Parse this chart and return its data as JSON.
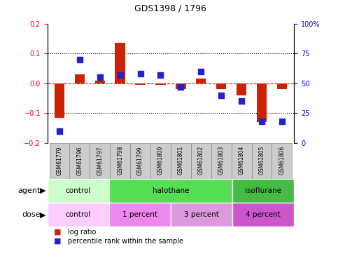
{
  "title": "GDS1398 / 1796",
  "samples": [
    "GSM61779",
    "GSM61796",
    "GSM61797",
    "GSM61798",
    "GSM61799",
    "GSM61800",
    "GSM61801",
    "GSM61802",
    "GSM61803",
    "GSM61804",
    "GSM61805",
    "GSM61806"
  ],
  "log_ratio": [
    -0.115,
    0.03,
    0.01,
    0.135,
    -0.005,
    -0.005,
    -0.02,
    0.015,
    -0.02,
    -0.04,
    -0.13,
    -0.02
  ],
  "percentile_rank": [
    10,
    70,
    55,
    57,
    58,
    57,
    47,
    60,
    40,
    35,
    18,
    18
  ],
  "ylim_left": [
    -0.2,
    0.2
  ],
  "ylim_right": [
    0,
    100
  ],
  "yticks_left": [
    -0.2,
    -0.1,
    0.0,
    0.1,
    0.2
  ],
  "yticks_right": [
    0,
    25,
    50,
    75,
    100
  ],
  "bar_color": "#CC2200",
  "dot_color": "#2222CC",
  "agent_groups": [
    {
      "label": "control",
      "start": 0,
      "end": 3,
      "color": "#CCFFCC"
    },
    {
      "label": "halothane",
      "start": 3,
      "end": 9,
      "color": "#55DD55"
    },
    {
      "label": "isoflurane",
      "start": 9,
      "end": 12,
      "color": "#44BB44"
    }
  ],
  "dose_groups": [
    {
      "label": "control",
      "start": 0,
      "end": 3,
      "color": "#FFCCFF"
    },
    {
      "label": "1 percent",
      "start": 3,
      "end": 6,
      "color": "#EE88EE"
    },
    {
      "label": "3 percent",
      "start": 6,
      "end": 9,
      "color": "#DD99DD"
    },
    {
      "label": "4 percent",
      "start": 9,
      "end": 12,
      "color": "#CC55CC"
    }
  ],
  "legend_log_ratio_label": "log ratio",
  "legend_percentile_label": "percentile rank within the sample",
  "agent_label": "agent",
  "dose_label": "dose",
  "bar_width": 0.5,
  "dot_size": 28,
  "sample_bg": "#CCCCCC",
  "sample_border": "#888888"
}
